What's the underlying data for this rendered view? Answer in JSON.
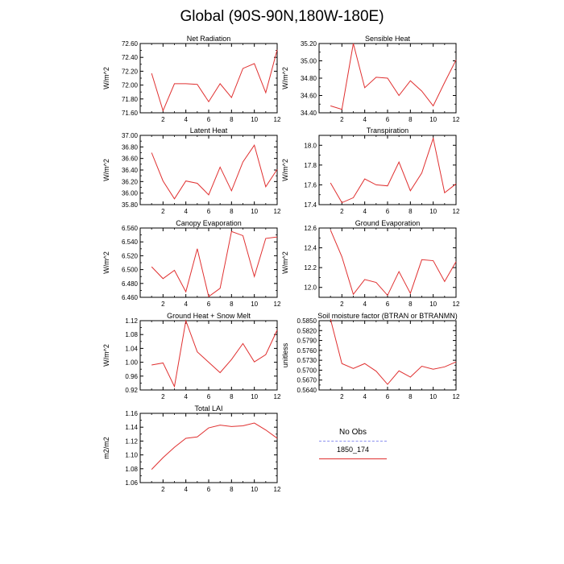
{
  "figure": {
    "title": "Global (90S-90N,180W-180E)"
  },
  "legend": {
    "title": "No Obs",
    "entries": [
      {
        "label": "",
        "color": "#8a8ff0",
        "style": "dashed"
      },
      {
        "label": "1850_174",
        "color": "#e03030",
        "style": "solid"
      }
    ]
  },
  "chart_data": [
    {
      "type": "line",
      "title": "Net Radiation",
      "ylabel": "W/m^2",
      "x": [
        1,
        2,
        3,
        4,
        5,
        6,
        7,
        8,
        9,
        10,
        11,
        12
      ],
      "xticks": [
        "2",
        "4",
        "6",
        "8",
        "10",
        "12"
      ],
      "xlim": [
        0,
        12
      ],
      "ylim": [
        71.6,
        72.6
      ],
      "yticks": [
        "71.60",
        "71.80",
        "72.00",
        "72.20",
        "72.40",
        "72.60"
      ],
      "series": [
        {
          "color": "#e03030",
          "values": [
            72.17,
            71.63,
            72.02,
            72.02,
            72.01,
            71.76,
            72.02,
            71.82,
            72.24,
            72.31,
            71.89,
            72.51
          ]
        }
      ]
    },
    {
      "type": "line",
      "title": "Sensible Heat",
      "ylabel": "W/m^2",
      "x": [
        1,
        2,
        3,
        4,
        5,
        6,
        7,
        8,
        9,
        10,
        11,
        12
      ],
      "xticks": [
        "2",
        "4",
        "6",
        "8",
        "10",
        "12"
      ],
      "xlim": [
        0,
        12
      ],
      "ylim": [
        34.4,
        35.2
      ],
      "yticks": [
        "34.40",
        "34.60",
        "34.80",
        "35.00",
        "35.20"
      ],
      "series": [
        {
          "color": "#e03030",
          "values": [
            34.48,
            34.44,
            35.2,
            34.69,
            34.81,
            34.8,
            34.6,
            34.77,
            34.65,
            34.48,
            34.75,
            35.01
          ]
        }
      ]
    },
    {
      "type": "line",
      "title": "Latent Heat",
      "ylabel": "W/m^2",
      "x": [
        1,
        2,
        3,
        4,
        5,
        6,
        7,
        8,
        9,
        10,
        11,
        12
      ],
      "xticks": [
        "2",
        "4",
        "6",
        "8",
        "10",
        "12"
      ],
      "xlim": [
        0,
        12
      ],
      "ylim": [
        35.8,
        37.0
      ],
      "yticks": [
        "35.80",
        "36.00",
        "36.20",
        "36.40",
        "36.60",
        "36.80",
        "37.00"
      ],
      "series": [
        {
          "color": "#e03030",
          "values": [
            36.7,
            36.21,
            35.9,
            36.21,
            36.17,
            35.97,
            36.45,
            36.04,
            36.54,
            36.83,
            36.11,
            36.41
          ]
        }
      ]
    },
    {
      "type": "line",
      "title": "Transpiration",
      "ylabel": "W/m^2",
      "x": [
        1,
        2,
        3,
        4,
        5,
        6,
        7,
        8,
        9,
        10,
        11,
        12
      ],
      "xticks": [
        "2",
        "4",
        "6",
        "8",
        "10",
        "12"
      ],
      "xlim": [
        0,
        12
      ],
      "ylim": [
        17.4,
        18.1
      ],
      "yticks": [
        "17.4",
        "17.6",
        "17.8",
        "18.0"
      ],
      "series": [
        {
          "color": "#e03030",
          "values": [
            17.62,
            17.42,
            17.47,
            17.66,
            17.6,
            17.59,
            17.83,
            17.54,
            17.72,
            18.07,
            17.52,
            17.61
          ]
        }
      ]
    },
    {
      "type": "line",
      "title": "Canopy Evaporation",
      "ylabel": "W/m^2",
      "x": [
        1,
        2,
        3,
        4,
        5,
        6,
        7,
        8,
        9,
        10,
        11,
        12
      ],
      "xticks": [
        "2",
        "4",
        "6",
        "8",
        "10",
        "12"
      ],
      "xlim": [
        0,
        12
      ],
      "ylim": [
        6.46,
        6.56
      ],
      "yticks": [
        "6.460",
        "6.480",
        "6.500",
        "6.520",
        "6.540",
        "6.560"
      ],
      "series": [
        {
          "color": "#e03030",
          "values": [
            6.504,
            6.487,
            6.499,
            6.468,
            6.53,
            6.461,
            6.473,
            6.555,
            6.549,
            6.49,
            6.545,
            6.547
          ]
        }
      ]
    },
    {
      "type": "line",
      "title": "Ground Evaporation",
      "ylabel": "W/m^2",
      "x": [
        1,
        2,
        3,
        4,
        5,
        6,
        7,
        8,
        9,
        10,
        11,
        12
      ],
      "xticks": [
        "2",
        "4",
        "6",
        "8",
        "10",
        "12"
      ],
      "xlim": [
        0,
        12
      ],
      "ylim": [
        11.9,
        12.6
      ],
      "yticks": [
        "12.0",
        "12.2",
        "12.4",
        "12.6"
      ],
      "series": [
        {
          "color": "#e03030",
          "values": [
            12.58,
            12.31,
            11.93,
            12.08,
            12.05,
            11.92,
            12.16,
            11.94,
            12.28,
            12.27,
            12.06,
            12.26
          ]
        }
      ]
    },
    {
      "type": "line",
      "title": "Ground Heat + Snow Melt",
      "ylabel": "W/m^2",
      "x": [
        1,
        2,
        3,
        4,
        5,
        6,
        7,
        8,
        9,
        10,
        11,
        12
      ],
      "xticks": [
        "2",
        "4",
        "6",
        "8",
        "10",
        "12"
      ],
      "xlim": [
        0,
        12
      ],
      "ylim": [
        0.92,
        1.12
      ],
      "yticks": [
        "0.92",
        "0.96",
        "1.00",
        "1.04",
        "1.08",
        "1.12"
      ],
      "series": [
        {
          "color": "#e03030",
          "values": [
            0.992,
            0.998,
            0.93,
            1.12,
            1.03,
            1.0,
            0.97,
            1.008,
            1.054,
            1.001,
            1.022,
            1.093
          ]
        }
      ]
    },
    {
      "type": "line",
      "title": "Soil moisture factor (BTRAN or BTRANMN)",
      "ylabel": "unitless",
      "x": [
        1,
        2,
        3,
        4,
        5,
        6,
        7,
        8,
        9,
        10,
        11,
        12
      ],
      "xticks": [
        "2",
        "4",
        "6",
        "8",
        "10",
        "12"
      ],
      "xlim": [
        0,
        12
      ],
      "ylim": [
        0.564,
        0.585
      ],
      "yticks": [
        "0.5640",
        "0.5670",
        "0.5700",
        "0.5730",
        "0.5760",
        "0.5790",
        "0.5820",
        "0.5850"
      ],
      "series": [
        {
          "color": "#e03030",
          "values": [
            0.5855,
            0.572,
            0.5705,
            0.572,
            0.5697,
            0.5657,
            0.5698,
            0.5679,
            0.5712,
            0.5703,
            0.571,
            0.5725
          ]
        }
      ]
    },
    {
      "type": "line",
      "title": "Total LAI",
      "ylabel": "m2/m2",
      "x": [
        1,
        2,
        3,
        4,
        5,
        6,
        7,
        8,
        9,
        10,
        11,
        12
      ],
      "xticks": [
        "2",
        "4",
        "6",
        "8",
        "10",
        "12"
      ],
      "xlim": [
        0,
        12
      ],
      "ylim": [
        1.06,
        1.16
      ],
      "yticks": [
        "1.06",
        "1.08",
        "1.10",
        "1.12",
        "1.14",
        "1.16"
      ],
      "series": [
        {
          "color": "#e03030",
          "values": [
            1.079,
            1.096,
            1.111,
            1.124,
            1.126,
            1.139,
            1.143,
            1.141,
            1.142,
            1.146,
            1.136,
            1.124
          ]
        }
      ]
    }
  ]
}
